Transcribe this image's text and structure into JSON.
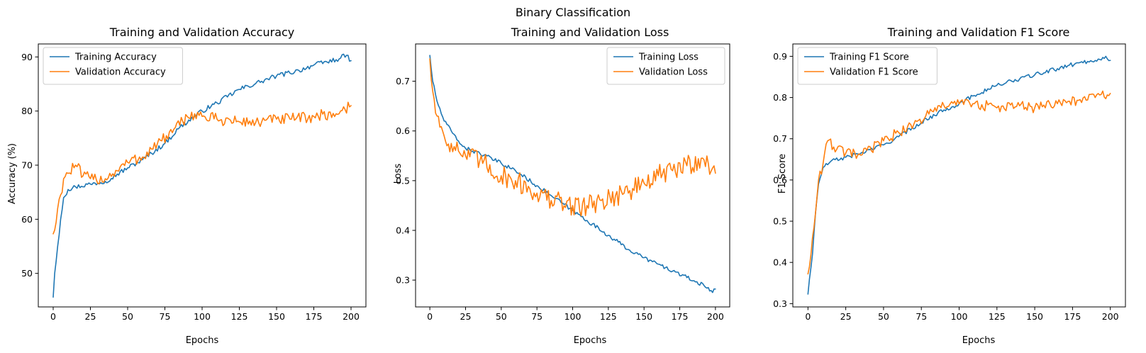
{
  "figure": {
    "suptitle": "Binary Classification"
  },
  "colors": {
    "training": "#1f77b4",
    "validation": "#ff7f0e"
  },
  "chart_data": [
    {
      "type": "line",
      "title": "Training and Validation Accuracy",
      "xlabel": "Epochs",
      "ylabel": "Accuracy (%)",
      "xlim": [
        -10,
        210
      ],
      "ylim": [
        43.8,
        92.4
      ],
      "xticks": [
        0,
        25,
        50,
        75,
        100,
        125,
        150,
        175,
        200
      ],
      "yticks": [
        50,
        60,
        70,
        80,
        90
      ],
      "legend_loc": "upper left",
      "series": [
        {
          "name": "Training Accuracy",
          "color": "#1f77b4",
          "points": [
            [
              0,
              45.6
            ],
            [
              1,
              50
            ],
            [
              3,
              55
            ],
            [
              5,
              60
            ],
            [
              7,
              64
            ],
            [
              10,
              65.5
            ],
            [
              15,
              66
            ],
            [
              25,
              66.5
            ],
            [
              35,
              67
            ],
            [
              50,
              69.5
            ],
            [
              60,
              71
            ],
            [
              75,
              74
            ],
            [
              85,
              77
            ],
            [
              100,
              80
            ],
            [
              110,
              81.5
            ],
            [
              125,
              84
            ],
            [
              140,
              85.5
            ],
            [
              150,
              86.5
            ],
            [
              165,
              87.5
            ],
            [
              175,
              88.5
            ],
            [
              190,
              89.5
            ],
            [
              197,
              90.3
            ],
            [
              200,
              89.3
            ]
          ],
          "noise": 0.45
        },
        {
          "name": "Validation Accuracy",
          "color": "#ff7f0e",
          "points": [
            [
              0,
              57.3
            ],
            [
              1,
              58
            ],
            [
              3,
              62
            ],
            [
              5,
              64.5
            ],
            [
              7,
              67.5
            ],
            [
              10,
              68.5
            ],
            [
              15,
              70
            ],
            [
              20,
              68
            ],
            [
              25,
              67.5
            ],
            [
              35,
              67.5
            ],
            [
              50,
              70.5
            ],
            [
              60,
              71.5
            ],
            [
              70,
              74
            ],
            [
              80,
              76
            ],
            [
              90,
              79
            ],
            [
              95,
              79.5
            ],
            [
              100,
              79
            ],
            [
              110,
              78.5
            ],
            [
              125,
              78
            ],
            [
              140,
              78
            ],
            [
              150,
              78.5
            ],
            [
              160,
              78.5
            ],
            [
              175,
              79
            ],
            [
              190,
              79.5
            ],
            [
              200,
              81
            ]
          ],
          "noise": 1.1
        }
      ]
    },
    {
      "type": "line",
      "title": "Training and Validation Loss",
      "xlabel": "Epochs",
      "ylabel": "Loss",
      "xlim": [
        -10,
        210
      ],
      "ylim": [
        0.246,
        0.775
      ],
      "xticks": [
        0,
        25,
        50,
        75,
        100,
        125,
        150,
        175,
        200
      ],
      "yticks": [
        0.3,
        0.4,
        0.5,
        0.6,
        0.7
      ],
      "legend_loc": "upper right",
      "series": [
        {
          "name": "Training Loss",
          "color": "#1f77b4",
          "points": [
            [
              0,
              0.752
            ],
            [
              2,
              0.7
            ],
            [
              5,
              0.66
            ],
            [
              10,
              0.62
            ],
            [
              15,
              0.6
            ],
            [
              20,
              0.58
            ],
            [
              25,
              0.565
            ],
            [
              35,
              0.555
            ],
            [
              50,
              0.535
            ],
            [
              60,
              0.52
            ],
            [
              75,
              0.49
            ],
            [
              85,
              0.47
            ],
            [
              100,
              0.44
            ],
            [
              110,
              0.42
            ],
            [
              125,
              0.39
            ],
            [
              140,
              0.36
            ],
            [
              150,
              0.345
            ],
            [
              165,
              0.325
            ],
            [
              180,
              0.305
            ],
            [
              195,
              0.285
            ],
            [
              198,
              0.275
            ],
            [
              200,
              0.282
            ]
          ],
          "noise": 0.004
        },
        {
          "name": "Validation Loss",
          "color": "#ff7f0e",
          "points": [
            [
              0,
              0.745
            ],
            [
              2,
              0.68
            ],
            [
              5,
              0.63
            ],
            [
              10,
              0.59
            ],
            [
              15,
              0.575
            ],
            [
              20,
              0.56
            ],
            [
              25,
              0.55
            ],
            [
              35,
              0.54
            ],
            [
              50,
              0.51
            ],
            [
              60,
              0.5
            ],
            [
              75,
              0.475
            ],
            [
              85,
              0.46
            ],
            [
              100,
              0.45
            ],
            [
              110,
              0.45
            ],
            [
              120,
              0.46
            ],
            [
              130,
              0.47
            ],
            [
              140,
              0.48
            ],
            [
              150,
              0.495
            ],
            [
              160,
              0.51
            ],
            [
              170,
              0.52
            ],
            [
              180,
              0.53
            ],
            [
              190,
              0.545
            ],
            [
              200,
              0.515
            ]
          ],
          "noise": 0.022
        }
      ]
    },
    {
      "type": "line",
      "title": "Training and Validation F1 Score",
      "xlabel": "Epochs",
      "ylabel": "F1 Score",
      "xlim": [
        -10,
        210
      ],
      "ylim": [
        0.292,
        0.93
      ],
      "xticks": [
        0,
        25,
        50,
        75,
        100,
        125,
        150,
        175,
        200
      ],
      "yticks": [
        0.3,
        0.4,
        0.5,
        0.6,
        0.7,
        0.8,
        0.9
      ],
      "legend_loc": "upper left",
      "series": [
        {
          "name": "Training F1 Score",
          "color": "#1f77b4",
          "points": [
            [
              0,
              0.323
            ],
            [
              1,
              0.36
            ],
            [
              3,
              0.42
            ],
            [
              5,
              0.52
            ],
            [
              7,
              0.59
            ],
            [
              10,
              0.63
            ],
            [
              15,
              0.645
            ],
            [
              25,
              0.655
            ],
            [
              35,
              0.665
            ],
            [
              50,
              0.685
            ],
            [
              60,
              0.705
            ],
            [
              75,
              0.74
            ],
            [
              90,
              0.77
            ],
            [
              100,
              0.785
            ],
            [
              110,
              0.805
            ],
            [
              125,
              0.83
            ],
            [
              140,
              0.845
            ],
            [
              150,
              0.855
            ],
            [
              165,
              0.87
            ],
            [
              180,
              0.885
            ],
            [
              190,
              0.89
            ],
            [
              197,
              0.9
            ],
            [
              200,
              0.89
            ]
          ],
          "noise": 0.005
        },
        {
          "name": "Validation F1 Score",
          "color": "#ff7f0e",
          "points": [
            [
              0,
              0.372
            ],
            [
              1,
              0.39
            ],
            [
              3,
              0.46
            ],
            [
              5,
              0.52
            ],
            [
              7,
              0.6
            ],
            [
              10,
              0.64
            ],
            [
              13,
              0.695
            ],
            [
              17,
              0.68
            ],
            [
              25,
              0.665
            ],
            [
              35,
              0.66
            ],
            [
              50,
              0.695
            ],
            [
              60,
              0.715
            ],
            [
              70,
              0.735
            ],
            [
              80,
              0.76
            ],
            [
              90,
              0.78
            ],
            [
              95,
              0.79
            ],
            [
              100,
              0.785
            ],
            [
              110,
              0.785
            ],
            [
              125,
              0.775
            ],
            [
              140,
              0.78
            ],
            [
              150,
              0.775
            ],
            [
              165,
              0.785
            ],
            [
              180,
              0.795
            ],
            [
              190,
              0.8
            ],
            [
              200,
              0.81
            ]
          ],
          "noise": 0.013
        }
      ]
    }
  ]
}
